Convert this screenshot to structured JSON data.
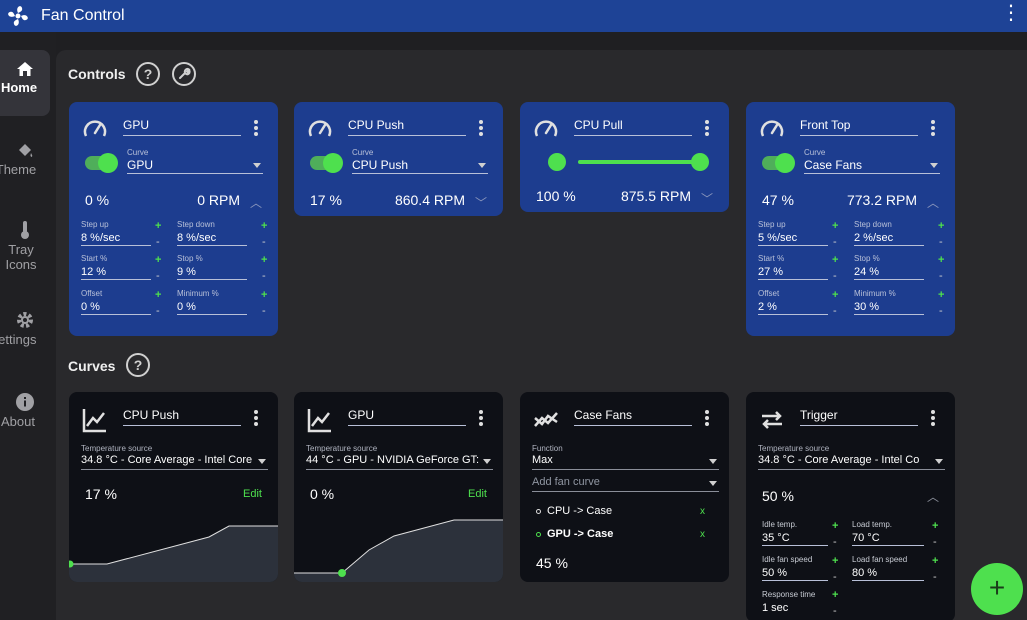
{
  "app": {
    "title": "Fan Control"
  },
  "sidebar": {
    "items": [
      {
        "label": "Home",
        "icon": "home-icon"
      },
      {
        "label": "Theme",
        "icon": "paint-bucket-icon"
      },
      {
        "label": "Tray",
        "label2": "Icons",
        "icon": "thermometer-icon"
      },
      {
        "label": "Settings",
        "icon": "gear-icon"
      },
      {
        "label": "About",
        "icon": "info-icon"
      }
    ]
  },
  "controls": {
    "title": "Controls",
    "help": "?",
    "cards": [
      {
        "name": "GPU",
        "curve_label": "Curve",
        "curve": "GPU",
        "percent": "0 %",
        "rpm": "0 RPM",
        "fields": [
          {
            "label": "Step up",
            "value": "8 %/sec"
          },
          {
            "label": "Step down",
            "value": "8 %/sec"
          },
          {
            "label": "Start %",
            "value": "12 %"
          },
          {
            "label": "Stop %",
            "value": "9 %"
          },
          {
            "label": "Offset",
            "value": "0 %"
          },
          {
            "label": "Minimum %",
            "value": "0 %"
          }
        ]
      },
      {
        "name": "CPU Push",
        "curve_label": "Curve",
        "curve": "CPU Push",
        "percent": "17 %",
        "rpm": "860.4 RPM"
      },
      {
        "name": "CPU Pull",
        "percent": "100 %",
        "rpm": "875.5 RPM",
        "slider_value": 100
      },
      {
        "name": "Front Top",
        "curve_label": "Curve",
        "curve": "Case Fans",
        "percent": "47 %",
        "rpm": "773.2 RPM",
        "fields": [
          {
            "label": "Step up",
            "value": "5 %/sec"
          },
          {
            "label": "Step down",
            "value": "2 %/sec"
          },
          {
            "label": "Start %",
            "value": "27 %"
          },
          {
            "label": "Stop %",
            "value": "24 %"
          },
          {
            "label": "Offset",
            "value": "2 %"
          },
          {
            "label": "Minimum %",
            "value": "30 %"
          }
        ]
      }
    ]
  },
  "curves": {
    "title": "Curves",
    "help": "?",
    "cards": [
      {
        "name": "CPU Push",
        "source_label": "Temperature source",
        "source": "34.8 °C - Core Average - Intel Core",
        "percent": "17 %",
        "edit": "Edit"
      },
      {
        "name": "GPU",
        "source_label": "Temperature source",
        "source": "44 °C - GPU - NVIDIA GeForce GT:",
        "percent": "0 %",
        "edit": "Edit"
      },
      {
        "name": "Case Fans",
        "function_label": "Function",
        "function": "Max",
        "add_placeholder": "Add fan curve",
        "items": [
          "CPU -> Case",
          "GPU -> Case"
        ],
        "remove": "x",
        "percent": "45 %"
      },
      {
        "name": "Trigger",
        "source_label": "Temperature source",
        "source": "34.8 °C - Core Average - Intel Co",
        "percent": "50 %",
        "fields": [
          {
            "label": "Idle temp.",
            "value": "35 °C"
          },
          {
            "label": "Load temp.",
            "value": "70 °C"
          },
          {
            "label": "Idle fan speed",
            "value": "50 %"
          },
          {
            "label": "Load fan speed",
            "value": "80 %"
          },
          {
            "label": "Response time",
            "value": "1 sec"
          }
        ]
      }
    ]
  },
  "fab": {
    "label": "+"
  },
  "colors": {
    "accent": "#4ee04e",
    "card_blue": "#1d3d8f",
    "titlebar": "#1e4396",
    "card_dark": "#0e1016"
  }
}
